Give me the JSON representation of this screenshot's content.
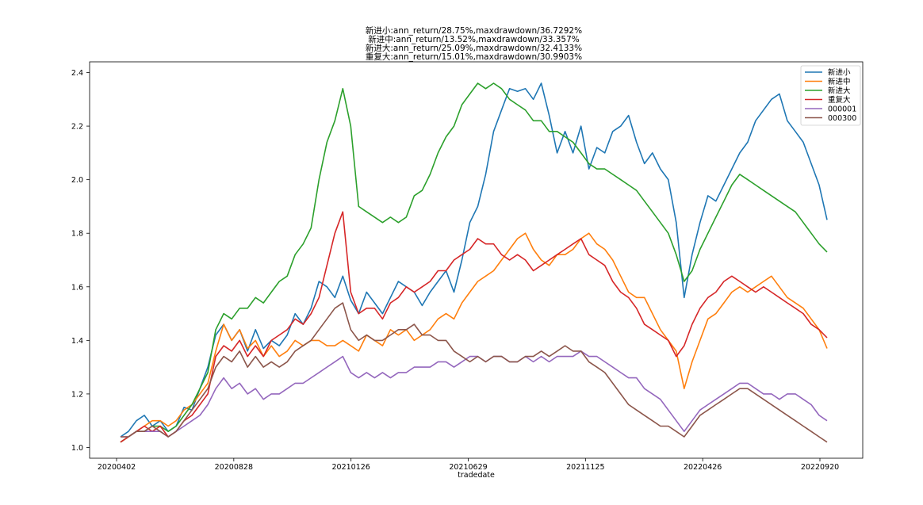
{
  "chart_data": {
    "type": "line",
    "title_lines": [
      "新进小:ann_return/28.75%,maxdrawdown/36.7292%",
      "新进中:ann_return/13.52%,maxdrawdown/33.357%",
      "新进大:ann_return/25.09%,maxdrawdown/32.4133%",
      "重复大:ann_return/15.01%,maxdrawdown/30.9903%"
    ],
    "xlabel": "tradedate",
    "ylabel": "",
    "x_ticks": [
      "20200402",
      "20200828",
      "20210126",
      "20210629",
      "20211125",
      "20220426",
      "20220920"
    ],
    "ylim": [
      0.96,
      2.44
    ],
    "y_ticks": [
      1.0,
      1.2,
      1.4,
      1.6,
      1.8,
      2.0,
      2.2,
      2.4
    ],
    "y_tick_labels": [
      "1.0",
      "1.2",
      "1.4",
      "1.6",
      "1.8",
      "2.0",
      "2.2",
      "2.4"
    ],
    "grid": false,
    "legend_position": "top-right",
    "series": [
      {
        "name": "新进小",
        "color": "#1f77b4",
        "values": [
          1.04,
          1.06,
          1.1,
          1.12,
          1.08,
          1.1,
          1.06,
          1.08,
          1.15,
          1.14,
          1.22,
          1.3,
          1.42,
          1.46,
          1.4,
          1.44,
          1.36,
          1.44,
          1.37,
          1.4,
          1.38,
          1.42,
          1.5,
          1.46,
          1.52,
          1.62,
          1.6,
          1.56,
          1.64,
          1.55,
          1.5,
          1.58,
          1.54,
          1.5,
          1.56,
          1.62,
          1.6,
          1.58,
          1.53,
          1.58,
          1.62,
          1.66,
          1.58,
          1.7,
          1.84,
          1.9,
          2.02,
          2.18,
          2.26,
          2.34,
          2.33,
          2.34,
          2.3,
          2.36,
          2.24,
          2.1,
          2.18,
          2.1,
          2.2,
          2.04,
          2.12,
          2.1,
          2.18,
          2.2,
          2.24,
          2.14,
          2.06,
          2.1,
          2.04,
          2.0,
          1.84,
          1.56,
          1.72,
          1.84,
          1.94,
          1.92,
          1.98,
          2.04,
          2.1,
          2.14,
          2.22,
          2.26,
          2.3,
          2.32,
          2.22,
          2.18,
          2.14,
          2.06,
          1.98,
          1.85
        ]
      },
      {
        "name": "新进中",
        "color": "#ff7f0e",
        "values": [
          1.02,
          1.04,
          1.06,
          1.08,
          1.1,
          1.1,
          1.08,
          1.1,
          1.14,
          1.16,
          1.2,
          1.24,
          1.36,
          1.46,
          1.4,
          1.44,
          1.37,
          1.4,
          1.34,
          1.38,
          1.34,
          1.36,
          1.4,
          1.38,
          1.4,
          1.4,
          1.38,
          1.38,
          1.4,
          1.38,
          1.36,
          1.42,
          1.4,
          1.38,
          1.44,
          1.42,
          1.44,
          1.4,
          1.42,
          1.44,
          1.48,
          1.5,
          1.48,
          1.54,
          1.58,
          1.62,
          1.64,
          1.66,
          1.7,
          1.74,
          1.78,
          1.8,
          1.74,
          1.7,
          1.68,
          1.72,
          1.72,
          1.74,
          1.78,
          1.8,
          1.76,
          1.74,
          1.7,
          1.64,
          1.58,
          1.56,
          1.56,
          1.5,
          1.44,
          1.4,
          1.36,
          1.22,
          1.32,
          1.4,
          1.48,
          1.5,
          1.54,
          1.58,
          1.6,
          1.58,
          1.6,
          1.62,
          1.64,
          1.6,
          1.56,
          1.54,
          1.52,
          1.48,
          1.44,
          1.37
        ]
      },
      {
        "name": "新进大",
        "color": "#2ca02c",
        "values": [
          1.02,
          1.04,
          1.06,
          1.06,
          1.08,
          1.08,
          1.06,
          1.08,
          1.12,
          1.16,
          1.22,
          1.28,
          1.44,
          1.5,
          1.48,
          1.52,
          1.52,
          1.56,
          1.54,
          1.58,
          1.62,
          1.64,
          1.72,
          1.76,
          1.82,
          2.0,
          2.14,
          2.22,
          2.34,
          2.2,
          1.9,
          1.88,
          1.86,
          1.84,
          1.86,
          1.84,
          1.86,
          1.94,
          1.96,
          2.02,
          2.1,
          2.16,
          2.2,
          2.28,
          2.32,
          2.36,
          2.34,
          2.36,
          2.34,
          2.3,
          2.28,
          2.26,
          2.22,
          2.22,
          2.18,
          2.18,
          2.16,
          2.14,
          2.1,
          2.06,
          2.04,
          2.04,
          2.02,
          2.0,
          1.98,
          1.96,
          1.92,
          1.88,
          1.84,
          1.8,
          1.72,
          1.62,
          1.66,
          1.74,
          1.8,
          1.86,
          1.92,
          1.98,
          2.02,
          2.0,
          1.98,
          1.96,
          1.94,
          1.92,
          1.9,
          1.88,
          1.84,
          1.8,
          1.76,
          1.73
        ]
      },
      {
        "name": "重复大",
        "color": "#d62728",
        "values": [
          1.02,
          1.04,
          1.06,
          1.08,
          1.06,
          1.08,
          1.04,
          1.06,
          1.1,
          1.12,
          1.16,
          1.2,
          1.34,
          1.38,
          1.36,
          1.4,
          1.34,
          1.38,
          1.34,
          1.4,
          1.42,
          1.44,
          1.48,
          1.46,
          1.5,
          1.56,
          1.68,
          1.8,
          1.88,
          1.58,
          1.5,
          1.52,
          1.52,
          1.48,
          1.54,
          1.56,
          1.6,
          1.58,
          1.6,
          1.62,
          1.66,
          1.66,
          1.7,
          1.72,
          1.74,
          1.78,
          1.76,
          1.76,
          1.72,
          1.7,
          1.72,
          1.7,
          1.66,
          1.68,
          1.7,
          1.72,
          1.74,
          1.76,
          1.78,
          1.72,
          1.7,
          1.68,
          1.62,
          1.58,
          1.56,
          1.52,
          1.46,
          1.44,
          1.42,
          1.4,
          1.34,
          1.38,
          1.46,
          1.52,
          1.56,
          1.58,
          1.62,
          1.64,
          1.62,
          1.6,
          1.58,
          1.6,
          1.58,
          1.56,
          1.54,
          1.52,
          1.5,
          1.46,
          1.44,
          1.41
        ]
      },
      {
        "name": "000001",
        "color": "#9467bd",
        "values": [
          1.04,
          1.04,
          1.06,
          1.06,
          1.06,
          1.06,
          1.04,
          1.06,
          1.08,
          1.1,
          1.12,
          1.16,
          1.22,
          1.26,
          1.22,
          1.24,
          1.2,
          1.22,
          1.18,
          1.2,
          1.2,
          1.22,
          1.24,
          1.24,
          1.26,
          1.28,
          1.3,
          1.32,
          1.34,
          1.28,
          1.26,
          1.28,
          1.26,
          1.28,
          1.26,
          1.28,
          1.28,
          1.3,
          1.3,
          1.3,
          1.32,
          1.32,
          1.3,
          1.32,
          1.34,
          1.34,
          1.32,
          1.34,
          1.34,
          1.32,
          1.32,
          1.34,
          1.32,
          1.34,
          1.32,
          1.34,
          1.34,
          1.34,
          1.36,
          1.34,
          1.34,
          1.32,
          1.3,
          1.28,
          1.26,
          1.26,
          1.22,
          1.2,
          1.18,
          1.14,
          1.1,
          1.06,
          1.1,
          1.14,
          1.16,
          1.18,
          1.2,
          1.22,
          1.24,
          1.24,
          1.22,
          1.2,
          1.2,
          1.18,
          1.2,
          1.2,
          1.18,
          1.16,
          1.12,
          1.1
        ]
      },
      {
        "name": "000300",
        "color": "#8c564b",
        "values": [
          1.04,
          1.04,
          1.06,
          1.06,
          1.08,
          1.06,
          1.04,
          1.06,
          1.1,
          1.14,
          1.18,
          1.22,
          1.3,
          1.34,
          1.32,
          1.36,
          1.3,
          1.34,
          1.3,
          1.32,
          1.3,
          1.32,
          1.36,
          1.38,
          1.4,
          1.44,
          1.48,
          1.52,
          1.54,
          1.44,
          1.4,
          1.42,
          1.4,
          1.4,
          1.42,
          1.44,
          1.44,
          1.46,
          1.42,
          1.42,
          1.4,
          1.4,
          1.36,
          1.34,
          1.32,
          1.34,
          1.32,
          1.34,
          1.34,
          1.32,
          1.32,
          1.34,
          1.34,
          1.36,
          1.34,
          1.36,
          1.38,
          1.36,
          1.36,
          1.32,
          1.3,
          1.28,
          1.24,
          1.2,
          1.16,
          1.14,
          1.12,
          1.1,
          1.08,
          1.08,
          1.06,
          1.04,
          1.08,
          1.12,
          1.14,
          1.16,
          1.18,
          1.2,
          1.22,
          1.22,
          1.2,
          1.18,
          1.16,
          1.14,
          1.12,
          1.1,
          1.08,
          1.06,
          1.04,
          1.02
        ]
      }
    ]
  }
}
